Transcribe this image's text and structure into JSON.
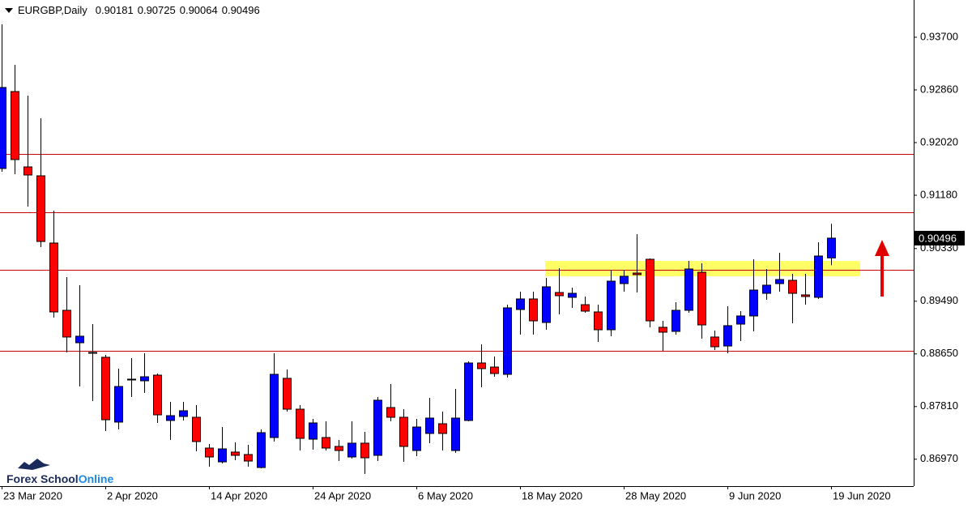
{
  "chart_data": {
    "type": "candlestick",
    "title": "EURGBP,Daily",
    "categories": [
      "23 Mar 2020",
      null,
      null,
      null,
      null,
      null,
      null,
      null,
      "2 Apr 2020",
      null,
      null,
      null,
      null,
      null,
      null,
      null,
      "14 Apr 2020",
      null,
      null,
      null,
      null,
      null,
      null,
      null,
      "24 Apr 2020",
      null,
      null,
      null,
      null,
      null,
      null,
      null,
      "6 May 2020",
      null,
      null,
      null,
      null,
      null,
      null,
      null,
      "18 May 2020",
      null,
      null,
      null,
      null,
      null,
      null,
      null,
      "28 May 2020",
      null,
      null,
      null,
      null,
      null,
      null,
      null,
      "9 Jun 2020",
      null,
      null,
      null,
      null,
      null,
      null,
      null,
      "19 Jun 2020"
    ],
    "open": [
      0.91607,
      0.92834,
      0.91632,
      0.9149,
      0.90418,
      0.89345,
      0.88828,
      0.88673,
      0.88596,
      0.87562,
      0.88247,
      0.88221,
      0.88311,
      0.87588,
      0.87652,
      0.87639,
      0.87148,
      0.86928,
      0.87084,
      0.87045,
      0.86838,
      0.87316,
      0.8826,
      0.87768,
      0.8729,
      0.87316,
      0.87174,
      0.87006,
      0.87226,
      0.87032,
      0.87794,
      0.87639,
      0.87109,
      0.87381,
      0.87536,
      0.87109,
      0.87588,
      0.88505,
      0.8844,
      0.88324,
      0.89358,
      0.89526,
      0.89151,
      0.89629,
      0.89552,
      0.89435,
      0.89319,
      0.89035,
      0.89771,
      0.89939,
      0.90159,
      0.89074,
      0.89009,
      0.89345,
      0.89952,
      0.88919,
      0.88776,
      0.89125,
      0.89255,
      0.89616,
      0.89771,
      0.89823,
      0.89591,
      0.89552,
      0.90181
    ],
    "high": [
      0.93907,
      0.93261,
      0.9277,
      0.92408,
      0.90935,
      0.89875,
      0.89746,
      0.89125,
      0.88634,
      0.88415,
      0.88583,
      0.8866,
      0.88337,
      0.87885,
      0.87885,
      0.87833,
      0.87213,
      0.87484,
      0.87239,
      0.872,
      0.87445,
      0.8866,
      0.88402,
      0.87833,
      0.87613,
      0.87575,
      0.87277,
      0.87575,
      0.87407,
      0.87962,
      0.88169,
      0.87768,
      0.87613,
      0.87949,
      0.8773,
      0.88092,
      0.88531,
      0.88802,
      0.88608,
      0.89435,
      0.89642,
      0.89642,
      0.89862,
      0.90017,
      0.89707,
      0.89565,
      0.89435,
      0.89991,
      0.89991,
      0.9056,
      0.90172,
      0.89177,
      0.89474,
      0.90133,
      0.90095,
      0.89022,
      0.8941,
      0.89332,
      0.90159,
      0.90004,
      0.90263,
      0.89927,
      0.89927,
      0.90431,
      0.90725
    ],
    "low": [
      0.91555,
      0.91516,
      0.90999,
      0.90353,
      0.89229,
      0.88673,
      0.8813,
      0.87898,
      0.8742,
      0.87445,
      0.87962,
      0.88027,
      0.87549,
      0.87277,
      0.87588,
      0.87096,
      0.86851,
      0.86903,
      0.86954,
      0.86851,
      0.86825,
      0.87252,
      0.8773,
      0.87109,
      0.87122,
      0.87109,
      0.86941,
      0.8698,
      0.86735,
      0.86941,
      0.87575,
      0.86928,
      0.87019,
      0.87226,
      0.87109,
      0.87071,
      0.87575,
      0.88117,
      0.88285,
      0.88272,
      0.88957,
      0.88957,
      0.89035,
      0.8928,
      0.89384,
      0.89306,
      0.88841,
      0.88932,
      0.89642,
      0.89629,
      0.89074,
      0.88699,
      0.88957,
      0.89306,
      0.88893,
      0.88712,
      0.8866,
      0.88854,
      0.89009,
      0.89513,
      0.89642,
      0.89138,
      0.89435,
      0.89526,
      0.90064
    ],
    "close": [
      0.92899,
      0.91749,
      0.91503,
      0.90443,
      0.89319,
      0.88919,
      0.88932,
      0.8866,
      0.876,
      0.8813,
      0.88234,
      0.88285,
      0.87678,
      0.87665,
      0.87743,
      0.87252,
      0.87006,
      0.87135,
      0.87032,
      0.86941,
      0.87394,
      0.88324,
      0.87768,
      0.87303,
      0.87549,
      0.87148,
      0.87109,
      0.87226,
      0.86993,
      0.87911,
      0.87639,
      0.87174,
      0.87484,
      0.87626,
      0.87381,
      0.87626,
      0.88505,
      0.88415,
      0.88337,
      0.89384,
      0.89526,
      0.89177,
      0.8972,
      0.89578,
      0.89616,
      0.89332,
      0.89035,
      0.8981,
      0.89888,
      0.89914,
      0.89177,
      0.88996,
      0.89345,
      0.90004,
      0.89112,
      0.88764,
      0.891,
      0.89255,
      0.89668,
      0.89746,
      0.89836,
      0.89616,
      0.89565,
      0.90211,
      0.90496
    ],
    "up_color": "#0000ff",
    "down_color": "#ff0000",
    "ylim": [
      0.86541,
      0.94294
    ],
    "yticks": [
      {
        "value": 0.937,
        "label": "0.93700"
      },
      {
        "value": 0.9286,
        "label": "0.92860"
      },
      {
        "value": 0.9202,
        "label": "0.92020"
      },
      {
        "value": 0.9118,
        "label": "0.91180"
      },
      {
        "value": 0.9033,
        "label": "0.90330"
      },
      {
        "value": 0.8949,
        "label": "0.89490"
      },
      {
        "value": 0.8865,
        "label": "0.88650"
      },
      {
        "value": 0.8781,
        "label": "0.87810"
      },
      {
        "value": 0.8697,
        "label": "0.86970"
      }
    ],
    "levels": {
      "values": [
        0.91839,
        0.90909,
        0.89991,
        0.88699
      ],
      "color": "#cc0000"
    },
    "zone": {
      "range": [
        0.89888,
        0.90133
      ],
      "color": "#ffff66"
    }
  },
  "brand": {
    "name": "Forex School",
    "suffix": "Online"
  }
}
